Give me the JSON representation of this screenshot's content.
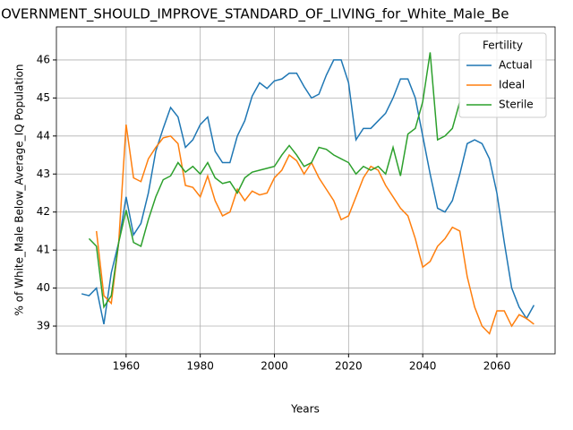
{
  "chart_data": {
    "type": "line",
    "title": "_GOVERNMENT_SHOULD_IMPROVE_STANDARD_OF_LIVING_for_White_Male_Be",
    "x_label": "Years",
    "y_label": "% of White_Male Below_Average_IQ Population",
    "legend_title": "Fertility",
    "legend": "upper right",
    "grid": true,
    "x": [
      1948,
      1950,
      1952,
      1954,
      1956,
      1958,
      1960,
      1962,
      1964,
      1966,
      1968,
      1970,
      1972,
      1974,
      1976,
      1978,
      1980,
      1982,
      1984,
      1986,
      1988,
      1990,
      1992,
      1994,
      1996,
      1998,
      2000,
      2002,
      2004,
      2006,
      2008,
      2010,
      2012,
      2014,
      2016,
      2018,
      2020,
      2022,
      2024,
      2026,
      2028,
      2030,
      2032,
      2034,
      2036,
      2038,
      2040,
      2042,
      2044,
      2046,
      2048,
      2050,
      2052,
      2054,
      2056,
      2058,
      2060,
      2062,
      2064,
      2066,
      2068,
      2070
    ],
    "series": [
      {
        "name": "Actual",
        "color": "#1f77b4",
        "values": [
          39.85,
          39.8,
          40.0,
          39.05,
          40.4,
          41.2,
          42.4,
          41.4,
          41.7,
          42.5,
          43.6,
          44.2,
          44.75,
          44.5,
          43.7,
          43.9,
          44.3,
          44.5,
          43.6,
          43.3,
          43.3,
          44.0,
          44.4,
          45.05,
          45.4,
          45.25,
          45.45,
          45.5,
          45.65,
          45.65,
          45.3,
          45.0,
          45.1,
          45.6,
          46.0,
          46.0,
          45.4,
          43.9,
          44.2,
          44.2,
          44.4,
          44.6,
          45.0,
          45.5,
          45.5,
          45.0,
          44.0,
          43.0,
          42.1,
          42.0,
          42.3,
          43.0,
          43.8,
          43.9,
          43.8,
          43.4,
          42.5,
          41.2,
          40.0,
          39.5,
          39.2,
          39.55
        ]
      },
      {
        "name": "Ideal",
        "color": "#ff7f0e",
        "values": [
          null,
          null,
          41.5,
          39.8,
          39.6,
          41.2,
          44.3,
          42.9,
          42.8,
          43.4,
          43.7,
          43.95,
          44.0,
          43.8,
          42.7,
          42.65,
          42.4,
          42.95,
          42.3,
          41.9,
          42.0,
          42.6,
          42.3,
          42.55,
          42.45,
          42.5,
          42.9,
          43.1,
          43.5,
          43.35,
          43.0,
          43.3,
          42.9,
          42.6,
          42.3,
          41.8,
          41.9,
          42.4,
          42.9,
          43.2,
          43.1,
          42.7,
          42.4,
          42.1,
          41.9,
          41.3,
          40.55,
          40.7,
          41.1,
          41.3,
          41.6,
          41.5,
          40.3,
          39.5,
          39.0,
          38.8,
          39.4,
          39.4,
          39.0,
          39.3,
          39.2,
          39.05
        ]
      },
      {
        "name": "Sterile",
        "color": "#2ca02c",
        "values": [
          null,
          41.3,
          41.1,
          39.5,
          39.8,
          41.2,
          42.05,
          41.2,
          41.1,
          41.8,
          42.4,
          42.85,
          42.95,
          43.3,
          43.05,
          43.2,
          43.0,
          43.3,
          42.9,
          42.75,
          42.8,
          42.5,
          42.9,
          43.05,
          43.1,
          43.15,
          43.2,
          43.5,
          43.75,
          43.5,
          43.2,
          43.3,
          43.7,
          43.65,
          43.5,
          43.4,
          43.3,
          43.0,
          43.2,
          43.1,
          43.2,
          43.0,
          43.7,
          42.95,
          44.05,
          44.2,
          44.9,
          46.2,
          43.9,
          44.0,
          44.2,
          44.9,
          null,
          null,
          null,
          null,
          null,
          null,
          null,
          null,
          null,
          null
        ]
      }
    ],
    "xlim": [
      1941.2,
      2075.7
    ],
    "xticks": [
      1960,
      1980,
      2000,
      2020,
      2040,
      2060
    ],
    "ylim": [
      38.27,
      46.87
    ],
    "yticks": [
      39,
      40,
      41,
      42,
      43,
      44,
      45,
      46
    ]
  }
}
